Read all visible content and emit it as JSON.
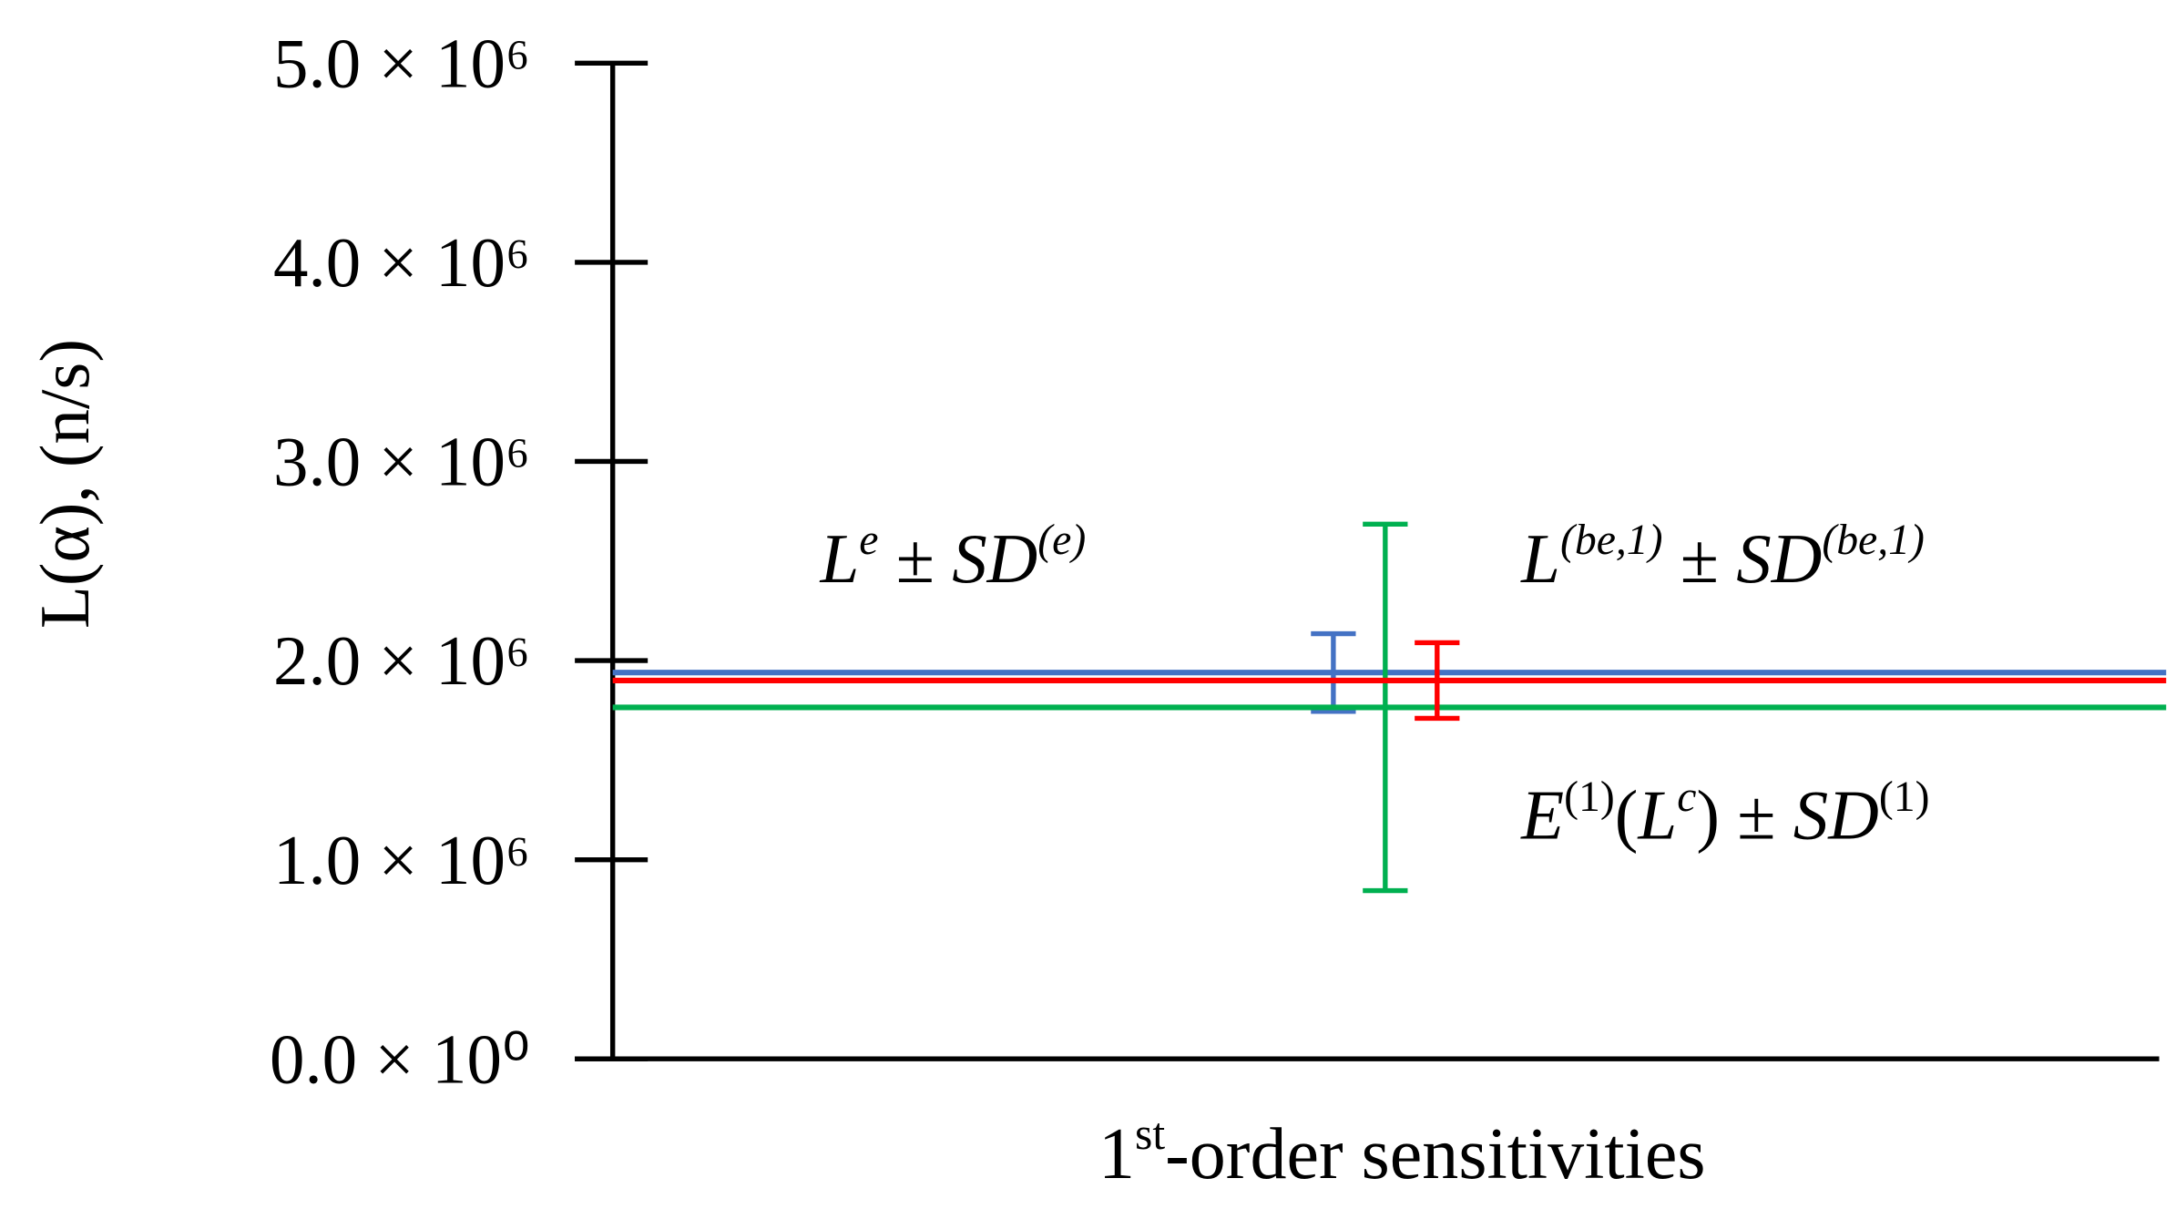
{
  "chart_data": {
    "type": "errorbar-lines",
    "ylabel": "L(α), (n/s)",
    "xlabel": [
      {
        "text": "1"
      },
      {
        "text": "st",
        "sup": true
      },
      {
        "text": "-order sensitivities"
      }
    ],
    "ylim": [
      0,
      5000000
    ],
    "yticks": [
      {
        "value": 0,
        "label": "0.0 × 10⁰"
      },
      {
        "value": 1000000,
        "label": "1.0 × 10⁶"
      },
      {
        "value": 2000000,
        "label": "2.0 × 10⁶"
      },
      {
        "value": 3000000,
        "label": "3.0 × 10⁶"
      },
      {
        "value": 4000000,
        "label": "4.0 × 10⁶"
      },
      {
        "value": 5000000,
        "label": "5.0 × 10⁶"
      }
    ],
    "series": [
      {
        "name": [
          {
            "text": "L",
            "italic": true
          },
          {
            "text": "e",
            "sup": true,
            "italic": true
          },
          {
            "text": " ± "
          },
          {
            "text": "SD",
            "italic": true
          },
          {
            "text": "(e)",
            "sup": true,
            "italic": true
          }
        ],
        "color": "#4472c4",
        "values": [
          1940000
        ],
        "errors": [
          195000
        ]
      },
      {
        "name": [
          {
            "text": "E",
            "italic": true
          },
          {
            "text": "(1)",
            "sup": true
          },
          {
            "text": "("
          },
          {
            "text": "L",
            "italic": true
          },
          {
            "text": "c",
            "sup": true,
            "italic": true
          },
          {
            "text": ") ± "
          },
          {
            "text": "SD",
            "italic": true
          },
          {
            "text": "(1)",
            "sup": true
          }
        ],
        "color": "#00b050",
        "values": [
          1765000
        ],
        "errors": [
          920000
        ]
      },
      {
        "name": [
          {
            "text": "L",
            "italic": true
          },
          {
            "text": "(be,1)",
            "sup": true,
            "italic": true
          },
          {
            "text": " ± "
          },
          {
            "text": "SD",
            "italic": true
          },
          {
            "text": "(be,1)",
            "sup": true,
            "italic": true
          }
        ],
        "color": "#ff0000",
        "values": [
          1900000
        ],
        "errors": [
          190000
        ]
      }
    ]
  }
}
